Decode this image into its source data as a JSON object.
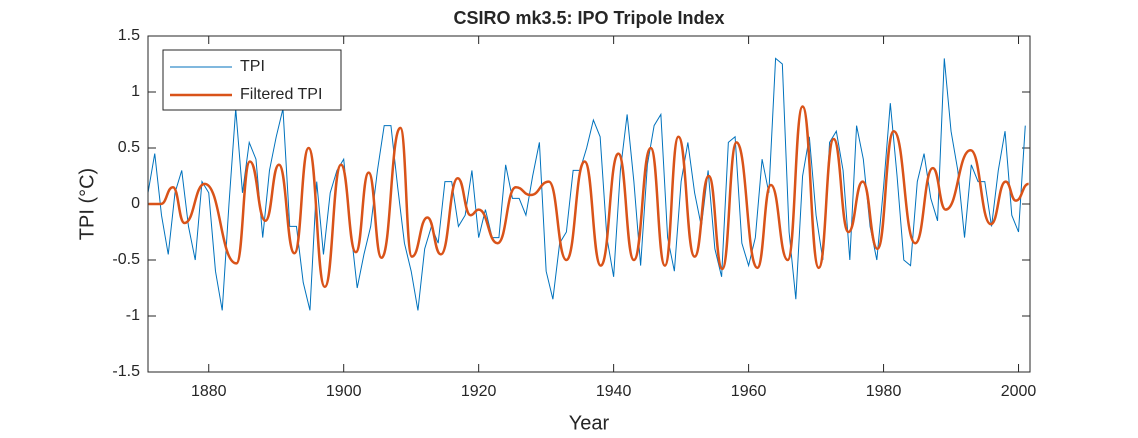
{
  "chart_data": {
    "type": "line",
    "title": "CSIRO mk3.5: IPO Tripole Index",
    "xlabel": "Year",
    "ylabel": "TPI (°C)",
    "xlim": [
      1871,
      2001.7
    ],
    "ylim": [
      -1.5,
      1.5
    ],
    "xticks": [
      1880,
      1900,
      1920,
      1940,
      1960,
      1980,
      2000
    ],
    "yticks": [
      -1.5,
      -1,
      -0.5,
      0,
      0.5,
      1,
      1.5
    ],
    "legend": "upper left",
    "series": [
      {
        "name": "TPI",
        "color": "#0072BD",
        "smooth": false,
        "x": [
          1871,
          1872,
          1873,
          1874,
          1875,
          1876,
          1877,
          1878,
          1879,
          1880,
          1881,
          1882,
          1883,
          1884,
          1885,
          1886,
          1887,
          1888,
          1889,
          1890,
          1891,
          1892,
          1893,
          1894,
          1895,
          1896,
          1897,
          1898,
          1899,
          1900,
          1901,
          1902,
          1903,
          1904,
          1905,
          1906,
          1907,
          1908,
          1909,
          1910,
          1911,
          1912,
          1913,
          1914,
          1915,
          1916,
          1917,
          1918,
          1919,
          1920,
          1921,
          1922,
          1923,
          1924,
          1925,
          1926,
          1927,
          1928,
          1929,
          1930,
          1931,
          1932,
          1933,
          1934,
          1935,
          1936,
          1937,
          1938,
          1939,
          1940,
          1941,
          1942,
          1943,
          1944,
          1945,
          1946,
          1947,
          1948,
          1949,
          1950,
          1951,
          1952,
          1953,
          1954,
          1955,
          1956,
          1957,
          1958,
          1959,
          1960,
          1961,
          1962,
          1963,
          1964,
          1965,
          1966,
          1967,
          1968,
          1969,
          1970,
          1971,
          1972,
          1973,
          1974,
          1975,
          1976,
          1977,
          1978,
          1979,
          1980,
          1981,
          1982,
          1983,
          1984,
          1985,
          1986,
          1987,
          1988,
          1989,
          1990,
          1991,
          1992,
          1993,
          1994,
          1995,
          1996,
          1997,
          1998,
          1999,
          2000,
          2001
        ],
        "values": [
          0.1,
          0.45,
          -0.1,
          -0.45,
          0.1,
          0.3,
          -0.2,
          -0.5,
          0.2,
          0.1,
          -0.6,
          -0.95,
          0.0,
          0.85,
          0.1,
          0.55,
          0.4,
          -0.3,
          0.3,
          0.6,
          0.85,
          -0.2,
          -0.2,
          -0.7,
          -0.95,
          0.2,
          -0.45,
          0.1,
          0.3,
          0.4,
          -0.2,
          -0.75,
          -0.45,
          -0.2,
          0.3,
          0.7,
          0.7,
          0.15,
          -0.35,
          -0.6,
          -0.95,
          -0.4,
          -0.2,
          -0.35,
          0.2,
          0.2,
          -0.2,
          -0.1,
          0.3,
          -0.3,
          -0.05,
          -0.3,
          -0.3,
          0.35,
          0.05,
          0.05,
          -0.1,
          0.25,
          0.55,
          -0.6,
          -0.85,
          -0.35,
          -0.25,
          0.3,
          0.3,
          0.5,
          0.75,
          0.6,
          -0.3,
          -0.65,
          0.3,
          0.8,
          0.2,
          -0.55,
          0.35,
          0.7,
          0.8,
          -0.3,
          -0.6,
          0.2,
          0.55,
          0.1,
          -0.2,
          0.3,
          -0.4,
          -0.65,
          0.55,
          0.6,
          -0.35,
          -0.55,
          -0.3,
          0.4,
          0.1,
          1.3,
          1.25,
          -0.25,
          -0.85,
          0.25,
          0.6,
          -0.1,
          -0.5,
          0.55,
          0.65,
          0.3,
          -0.5,
          0.7,
          0.4,
          -0.2,
          -0.5,
          0.15,
          0.9,
          0.25,
          -0.5,
          -0.55,
          0.2,
          0.45,
          0.05,
          -0.15,
          1.3,
          0.65,
          0.3,
          -0.3,
          0.35,
          0.2,
          0.2,
          -0.2,
          0.3,
          0.65,
          -0.1,
          -0.25,
          0.7
        ]
      },
      {
        "name": "Filtered TPI",
        "color": "#D95319",
        "smooth": true,
        "x": [
          1871.1,
          1872.9,
          1874.7,
          1876.4,
          1879.4,
          1884.1,
          1886.1,
          1888.4,
          1890.4,
          1892.7,
          1894.8,
          1897.2,
          1899.6,
          1901.8,
          1903.7,
          1905.6,
          1908.4,
          1910.1,
          1912.4,
          1914.4,
          1916.9,
          1918.8,
          1920.0,
          1922.8,
          1925.5,
          1927.7,
          1930.4,
          1933.0,
          1935.7,
          1938.1,
          1940.7,
          1943.0,
          1945.5,
          1947.6,
          1949.6,
          1952.0,
          1954.1,
          1956.1,
          1958.2,
          1961.3,
          1963.3,
          1965.8,
          1968.0,
          1970.4,
          1972.6,
          1974.8,
          1976.9,
          1979.1,
          1981.5,
          1984.7,
          1987.3,
          1989.2,
          1992.9,
          1995.9,
          1998.1,
          1999.6,
          2001.5
        ],
        "values": [
          0.0,
          0.0,
          0.15,
          -0.17,
          0.18,
          -0.53,
          0.38,
          -0.15,
          0.35,
          -0.44,
          0.5,
          -0.74,
          0.35,
          -0.43,
          0.28,
          -0.48,
          0.68,
          -0.47,
          -0.12,
          -0.45,
          0.23,
          -0.1,
          -0.05,
          -0.35,
          0.15,
          0.08,
          0.2,
          -0.5,
          0.38,
          -0.55,
          0.45,
          -0.5,
          0.5,
          -0.55,
          0.6,
          -0.47,
          0.25,
          -0.58,
          0.55,
          -0.57,
          0.17,
          -0.5,
          0.87,
          -0.57,
          0.58,
          -0.25,
          0.2,
          -0.4,
          0.65,
          -0.35,
          0.32,
          -0.05,
          0.48,
          -0.18,
          0.2,
          0.03,
          0.18
        ]
      }
    ]
  }
}
